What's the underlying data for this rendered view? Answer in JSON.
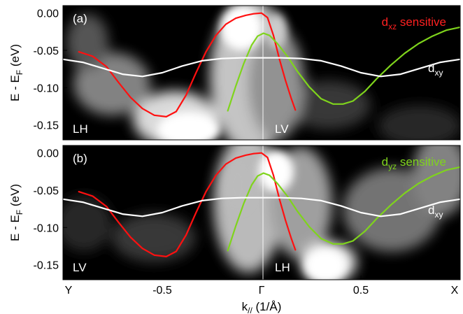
{
  "chart_data": [
    {
      "panel_label": "(a)",
      "type": "line",
      "ylabel": "E - E",
      "ylabel_sub": "F",
      "ylabel_suffix": " (eV)",
      "ylim": [
        -0.17,
        0.01
      ],
      "xlim": [
        -1.0,
        1.0
      ],
      "yticks": [
        "0.00",
        "-0.05",
        "-0.10",
        "-0.15"
      ],
      "ytick_values": [
        0.0,
        -0.05,
        -0.1,
        -0.15
      ],
      "title_main": "d",
      "title_sub": "xz",
      "title_suffix": " sensitive",
      "title_color": "#ff2020",
      "left_polarization": "LH",
      "right_polarization": "LV",
      "dxy_label": "d",
      "dxy_sub": "xy",
      "series": [
        {
          "color": "#ff1010",
          "x": [
            -0.92,
            -0.85,
            -0.78,
            -0.72,
            -0.66,
            -0.6,
            -0.54,
            -0.48,
            -0.43,
            -0.38,
            -0.33,
            -0.28,
            -0.23,
            -0.18,
            -0.13,
            -0.08,
            -0.04,
            0.0,
            0.03,
            0.06,
            0.09,
            0.12,
            0.15,
            0.17
          ],
          "y": [
            -0.052,
            -0.058,
            -0.072,
            -0.093,
            -0.113,
            -0.128,
            -0.137,
            -0.139,
            -0.132,
            -0.11,
            -0.08,
            -0.052,
            -0.03,
            -0.015,
            -0.007,
            -0.003,
            -0.001,
            0.0,
            -0.006,
            -0.03,
            -0.062,
            -0.09,
            -0.115,
            -0.13
          ]
        },
        {
          "color": "#7fd41c",
          "x": [
            -0.17,
            -0.13,
            -0.09,
            -0.05,
            -0.02,
            0.01,
            0.04,
            0.08,
            0.13,
            0.18,
            0.24,
            0.3,
            0.36,
            0.41,
            0.46,
            0.52,
            0.58,
            0.65,
            0.72,
            0.79,
            0.86,
            0.93,
            1.0
          ],
          "y": [
            -0.131,
            -0.098,
            -0.068,
            -0.043,
            -0.031,
            -0.027,
            -0.03,
            -0.041,
            -0.058,
            -0.078,
            -0.099,
            -0.115,
            -0.122,
            -0.122,
            -0.118,
            -0.105,
            -0.088,
            -0.07,
            -0.054,
            -0.041,
            -0.031,
            -0.023,
            -0.019
          ]
        },
        {
          "color": "#ffffff",
          "x": [
            -1.0,
            -0.9,
            -0.8,
            -0.7,
            -0.6,
            -0.5,
            -0.4,
            -0.3,
            -0.2,
            -0.1,
            0.0,
            0.1,
            0.2,
            0.3,
            0.4,
            0.5,
            0.6,
            0.7,
            0.8,
            0.9,
            1.0
          ],
          "y": [
            -0.062,
            -0.066,
            -0.074,
            -0.082,
            -0.085,
            -0.08,
            -0.071,
            -0.064,
            -0.061,
            -0.06,
            -0.06,
            -0.06,
            -0.061,
            -0.064,
            -0.071,
            -0.08,
            -0.085,
            -0.082,
            -0.074,
            -0.066,
            -0.062
          ]
        }
      ]
    },
    {
      "panel_label": "(b)",
      "type": "line",
      "ylabel": "E - E",
      "ylabel_sub": "F",
      "ylabel_suffix": " (eV)",
      "ylim": [
        -0.17,
        0.01
      ],
      "xlim": [
        -1.0,
        1.0
      ],
      "yticks": [
        "0.00",
        "-0.05",
        "-0.10",
        "-0.15"
      ],
      "ytick_values": [
        0.0,
        -0.05,
        -0.1,
        -0.15
      ],
      "title_main": "d",
      "title_sub": "yz",
      "title_suffix": " sensitive",
      "title_color": "#7fd41c",
      "left_polarization": "LV",
      "right_polarization": "LH",
      "dxy_label": "d",
      "dxy_sub": "xy",
      "xtick_labels": [
        "Y",
        "-0.5",
        "Γ",
        "0.5",
        "X"
      ],
      "xtick_values": [
        -1.0,
        -0.5,
        0.0,
        0.5,
        1.0
      ],
      "xlabel": "k",
      "xlabel_sub": "//",
      "xlabel_suffix": " (1/Å)",
      "series": [
        {
          "color": "#ff1010",
          "x": [
            -0.92,
            -0.85,
            -0.78,
            -0.72,
            -0.66,
            -0.6,
            -0.54,
            -0.48,
            -0.43,
            -0.38,
            -0.33,
            -0.28,
            -0.23,
            -0.18,
            -0.13,
            -0.08,
            -0.04,
            0.0,
            0.03,
            0.06,
            0.09,
            0.12,
            0.15,
            0.17
          ],
          "y": [
            -0.052,
            -0.058,
            -0.072,
            -0.093,
            -0.113,
            -0.128,
            -0.137,
            -0.139,
            -0.132,
            -0.11,
            -0.08,
            -0.052,
            -0.03,
            -0.015,
            -0.007,
            -0.003,
            -0.001,
            0.0,
            -0.006,
            -0.03,
            -0.062,
            -0.09,
            -0.115,
            -0.13
          ]
        },
        {
          "color": "#7fd41c",
          "x": [
            -0.17,
            -0.13,
            -0.09,
            -0.05,
            -0.02,
            0.01,
            0.04,
            0.08,
            0.13,
            0.18,
            0.24,
            0.3,
            0.36,
            0.41,
            0.46,
            0.52,
            0.58,
            0.65,
            0.72,
            0.79,
            0.86,
            0.93,
            1.0
          ],
          "y": [
            -0.131,
            -0.098,
            -0.068,
            -0.043,
            -0.031,
            -0.027,
            -0.03,
            -0.041,
            -0.058,
            -0.078,
            -0.099,
            -0.115,
            -0.122,
            -0.122,
            -0.118,
            -0.105,
            -0.088,
            -0.07,
            -0.054,
            -0.041,
            -0.031,
            -0.023,
            -0.019
          ]
        },
        {
          "color": "#ffffff",
          "x": [
            -1.0,
            -0.9,
            -0.8,
            -0.7,
            -0.6,
            -0.5,
            -0.4,
            -0.3,
            -0.2,
            -0.1,
            0.0,
            0.1,
            0.2,
            0.3,
            0.4,
            0.5,
            0.6,
            0.7,
            0.8,
            0.9,
            1.0
          ],
          "y": [
            -0.062,
            -0.066,
            -0.074,
            -0.082,
            -0.085,
            -0.08,
            -0.071,
            -0.064,
            -0.061,
            -0.06,
            -0.06,
            -0.06,
            -0.061,
            -0.064,
            -0.071,
            -0.08,
            -0.085,
            -0.082,
            -0.074,
            -0.066,
            -0.062
          ]
        }
      ]
    }
  ]
}
